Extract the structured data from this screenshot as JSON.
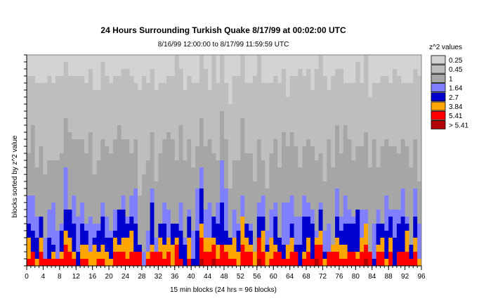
{
  "chart_data": {
    "type": "heatmap",
    "title": "24 Hours Surrounding Turkish Quake 8/17/99 at 00:02:00 UTC",
    "subtitle": "8/16/99 12:00:00 to 8/17/99 11:59:59 UTC",
    "xlabel": "15 min blocks (24 hrs = 96 blocks)",
    "ylabel": "blocks sorted by z^2 value",
    "x_ticks": [
      0,
      4,
      8,
      12,
      16,
      20,
      24,
      28,
      32,
      36,
      40,
      44,
      48,
      52,
      56,
      60,
      64,
      68,
      72,
      76,
      80,
      84,
      88,
      92,
      96
    ],
    "xlim": [
      0,
      96
    ],
    "y_rows": 30,
    "legend_title": "z^2 values",
    "legend_placement": "right",
    "legend": [
      {
        "label": "0.25",
        "color": "#d3d3d3"
      },
      {
        "label": "0.45",
        "color": "#bebebe"
      },
      {
        "label": "1",
        "color": "#a6a6a6"
      },
      {
        "label": "1.64",
        "color": "#8080ff"
      },
      {
        "label": "2.7",
        "color": "#0000cc"
      },
      {
        "label": "3.84",
        "color": "#ffa500"
      },
      {
        "label": "5.41",
        "color": "#ff0000"
      },
      {
        "label": "> 5.41",
        "color": "#b30000"
      }
    ]
  }
}
